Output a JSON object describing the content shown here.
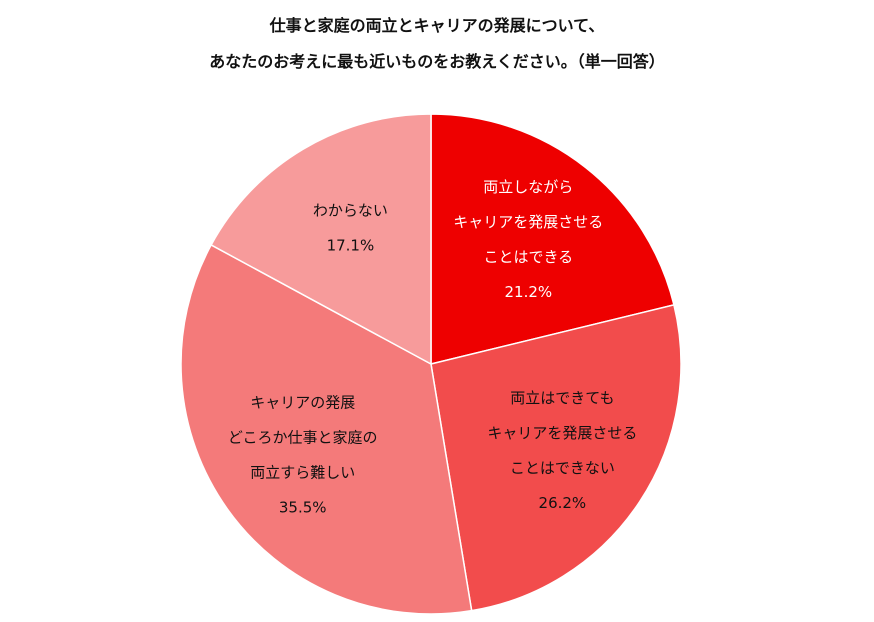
{
  "title_lines": [
    "仕事と家庭の両立とキャリアの発展について、",
    "あなたのお考えに最も近いものをお教えください。（単一回答）"
  ],
  "chart_data": {
    "type": "pie",
    "slices": [
      {
        "label_lines": [
          "両立しながら",
          "キャリアを発展させる",
          "ことはできる"
        ],
        "value": 21.2,
        "value_text": "21.2%",
        "color": "#EE0000",
        "text_color": "#ffffff"
      },
      {
        "label_lines": [
          "両立はできても",
          "キャリアを発展させる",
          "ことはできない"
        ],
        "value": 26.2,
        "value_text": "26.2%",
        "color": "#F24C4C",
        "text_color": "#111111"
      },
      {
        "label_lines": [
          "キャリアの発展",
          "どころか仕事と家庭の",
          "両立すら難しい"
        ],
        "value": 35.5,
        "value_text": "35.5%",
        "color": "#F47A7A",
        "text_color": "#111111"
      },
      {
        "label_lines": [
          "わからない"
        ],
        "value": 17.1,
        "value_text": "17.1%",
        "color": "#F79B9B",
        "text_color": "#111111"
      }
    ],
    "start_angle_deg": 0,
    "direction": "clockwise",
    "legend": "none"
  }
}
